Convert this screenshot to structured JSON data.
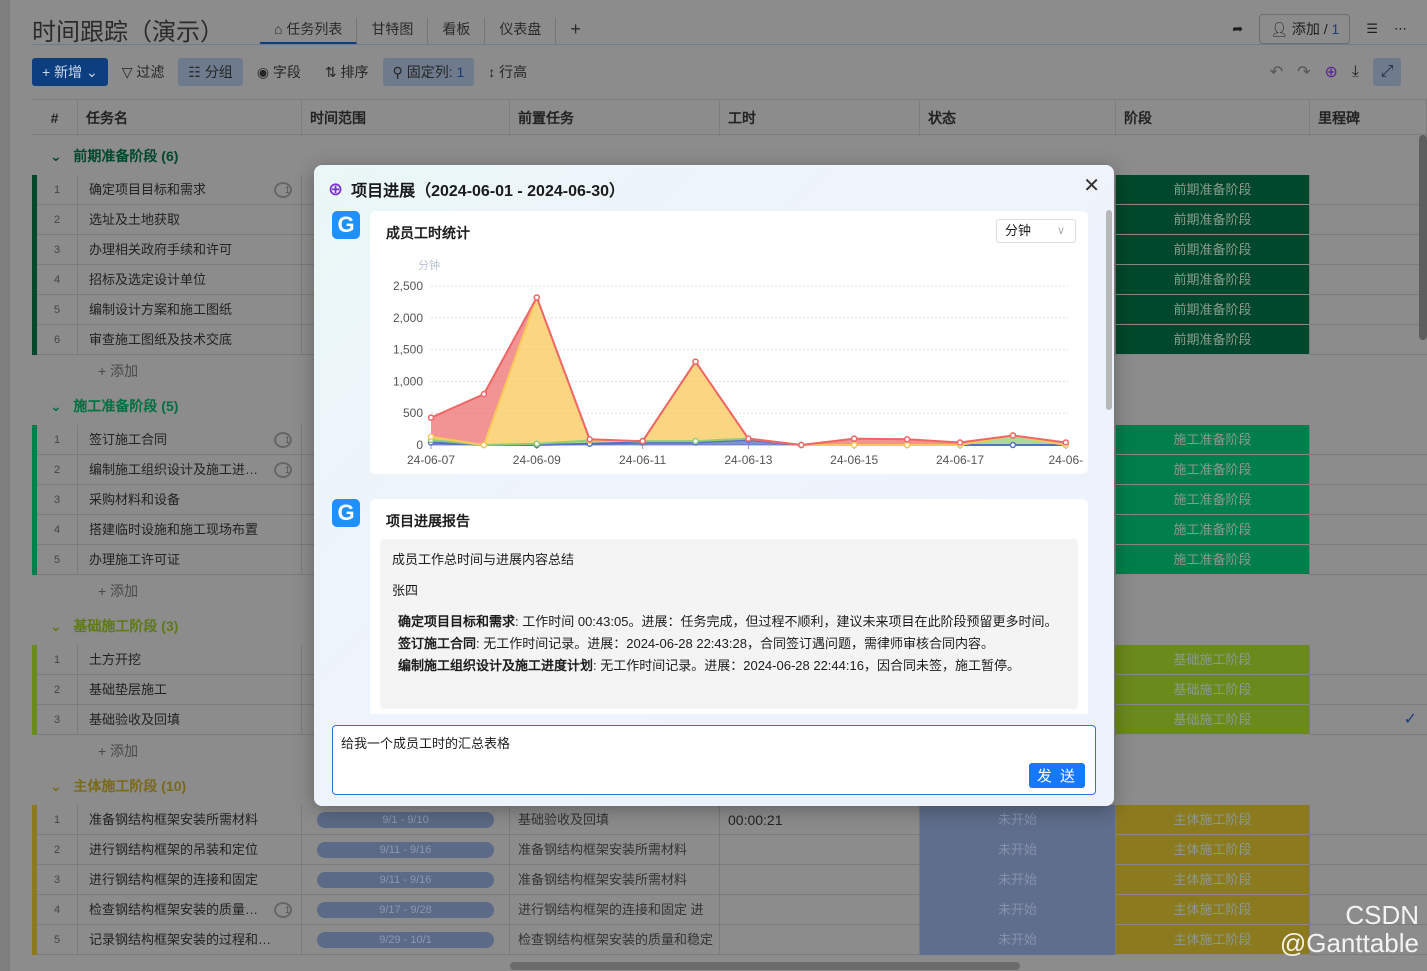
{
  "app": {
    "title": "时间跟踪（演示）",
    "tabs": [
      "任务列表",
      "甘特图",
      "看板",
      "仪表盘"
    ],
    "tab_add": "+",
    "add_member": "添加 / ",
    "member_count": "1"
  },
  "toolbar": {
    "new": "新增",
    "filter": "过滤",
    "group": "分组",
    "fields": "字段",
    "sort": "排序",
    "pinned": "固定列: ",
    "pinned_count": "1",
    "row_height": "行高"
  },
  "columns": [
    "#",
    "任务名",
    "时间范围",
    "前置任务",
    "工时",
    "状态",
    "阶段",
    "里程碑"
  ],
  "add_row": "+ 添加",
  "colors": {
    "phase1": "#00482b",
    "phase2": "#007e4b",
    "phase3": "#6b8a1c",
    "phase4": "#8c7a1f",
    "accent": "#1677ff"
  },
  "groups": [
    {
      "name": "前期准备阶段",
      "count": "(6)",
      "color": "#00482b",
      "label_color": "#00482b",
      "rows": [
        {
          "name": "确定项目目标和需求",
          "comments": "1",
          "stage": "前期准备阶段"
        },
        {
          "name": "选址及土地获取",
          "stage": "前期准备阶段"
        },
        {
          "name": "办理相关政府手续和许可",
          "stage": "前期准备阶段"
        },
        {
          "name": "招标及选定设计单位",
          "stage": "前期准备阶段"
        },
        {
          "name": "编制设计方案和施工图纸",
          "stage": "前期准备阶段"
        },
        {
          "name": "审查施工图纸及技术交底",
          "stage": "前期准备阶段"
        }
      ]
    },
    {
      "name": "施工准备阶段",
      "count": "(5)",
      "color": "#007e4b",
      "label_color": "#007040",
      "rows": [
        {
          "name": "签订施工合同",
          "comments": "1",
          "stage": "施工准备阶段"
        },
        {
          "name": "编制施工组织设计及施工进…",
          "comments": "1",
          "stage": "施工准备阶段"
        },
        {
          "name": "采购材料和设备",
          "stage": "施工准备阶段"
        },
        {
          "name": "搭建临时设施和施工现场布置",
          "stage": "施工准备阶段"
        },
        {
          "name": "办理施工许可证",
          "stage": "施工准备阶段"
        }
      ]
    },
    {
      "name": "基础施工阶段",
      "count": "(3)",
      "color": "#6b8a1c",
      "label_color": "#5e7a16",
      "rows": [
        {
          "name": "土方开挖",
          "stage": "基础施工阶段"
        },
        {
          "name": "基础垫层施工",
          "stage": "基础施工阶段"
        },
        {
          "name": "基础验收及回填",
          "stage": "基础施工阶段",
          "milestone": "✓"
        }
      ]
    },
    {
      "name": "主体施工阶段",
      "count": "(10)",
      "color": "#8c7a1f",
      "label_color": "#7a6a18",
      "rows": [
        {
          "name": "准备钢结构框架安装所需材料",
          "time": "9/1 - 9/10",
          "pred": "基础验收及回填",
          "hours": "00:00:21",
          "status": "未开始",
          "stage": "主体施工阶段"
        },
        {
          "name": "进行钢结构框架的吊装和定位",
          "time": "9/11 - 9/16",
          "pred": "准备钢结构框架安装所需材料",
          "status": "未开始",
          "stage": "主体施工阶段"
        },
        {
          "name": "进行钢结构框架的连接和固定",
          "time": "9/11 - 9/16",
          "pred": "准备钢结构框架安装所需材料",
          "status": "未开始",
          "stage": "主体施工阶段"
        },
        {
          "name": "检查钢结构框架安装的质量…",
          "comments": "1",
          "time": "9/17 - 9/28",
          "pred": "进行钢结构框架的连接和固定  进",
          "status": "未开始",
          "stage": "主体施工阶段"
        },
        {
          "name": "记录钢结构框架安装的过程和…",
          "time": "9/29 - 10/1",
          "pred": "检查钢结构框架安装的质量和稳定",
          "status": "未开始",
          "stage": "主体施工阶段"
        }
      ]
    }
  ],
  "modal": {
    "title": "项目进展（2024-06-01 - 2024-06-30）",
    "avatar": "G",
    "chart_card": {
      "title": "成员工时统计",
      "unit_select": "分钟"
    },
    "report": {
      "title": "项目进展报告",
      "heading": "成员工作总时间与进展内容总结",
      "member": "张四",
      "items": [
        {
          "task": "确定项目目标和需求",
          "text": ": 工作时间 00:43:05。进展：任务完成，但过程不顺利，建议未来项目在此阶段预留更多时间。"
        },
        {
          "task": "签订施工合同",
          "text": ": 无工作时间记录。进展：2024-06-28 22:43:28，合同签订遇问题，需律师审核合同内容。"
        },
        {
          "task": "编制施工组织设计及施工进度计划",
          "text": ": 无工作时间记录。进展：2024-06-28 22:44:16，因合同未签，施工暂停。"
        }
      ]
    },
    "input_value": "给我一个成员工时的汇总表格",
    "send": "发 送"
  },
  "chart_data": {
    "type": "area",
    "stacked": true,
    "ylabel": "分钟",
    "ylim": [
      0,
      2500
    ],
    "yticks": [
      "0",
      "500",
      "1,000",
      "1,500",
      "2,000",
      "2,500"
    ],
    "categories": [
      "24-06-07",
      "24-06-08",
      "24-06-09",
      "24-06-10",
      "24-06-11",
      "24-06-12",
      "24-06-13",
      "24-06-14",
      "24-06-15",
      "24-06-16",
      "24-06-17",
      "24-06-18",
      "24-06-19"
    ],
    "xtick_labels": [
      "24-06-07",
      "24-06-09",
      "24-06-11",
      "24-06-13",
      "24-06-15",
      "24-06-17",
      "24-06-"
    ],
    "grid": true,
    "series": [
      {
        "color": "#5470c6",
        "values": [
          40,
          0,
          0,
          20,
          40,
          40,
          80,
          0,
          0,
          0,
          0,
          0,
          0
        ]
      },
      {
        "color": "#91cc75",
        "values": [
          40,
          0,
          20,
          50,
          20,
          20,
          20,
          0,
          0,
          0,
          0,
          150,
          0
        ]
      },
      {
        "color": "#fac858",
        "values": [
          50,
          0,
          2300,
          0,
          0,
          1250,
          0,
          0,
          0,
          0,
          0,
          0,
          0
        ]
      },
      {
        "color": "#ee6666",
        "values": [
          300,
          800,
          0,
          20,
          0,
          0,
          0,
          0,
          100,
          90,
          40,
          0,
          40
        ]
      }
    ]
  },
  "watermark": "CSDN @Ganttable"
}
